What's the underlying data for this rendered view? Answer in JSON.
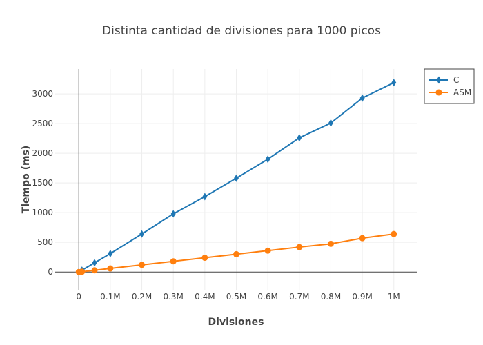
{
  "chart_data": {
    "type": "line",
    "title": "Distinta cantidad de divisiones para 1000 picos",
    "xlabel": "Divisiones",
    "ylabel": "Tiempo (ms)",
    "xlim": [
      -75000,
      1075000
    ],
    "ylim": [
      -300,
      3420
    ],
    "grid": true,
    "legend_position": "top-right",
    "x_ticks": [
      0,
      100000,
      200000,
      300000,
      400000,
      500000,
      600000,
      700000,
      800000,
      900000,
      1000000
    ],
    "x_tick_labels": [
      "0",
      "0.1M",
      "0.2M",
      "0.3M",
      "0.4M",
      "0.5M",
      "0.6M",
      "0.7M",
      "0.8M",
      "0.9M",
      "1M"
    ],
    "y_ticks": [
      0,
      500,
      1000,
      1500,
      2000,
      2500,
      3000
    ],
    "y_tick_labels": [
      "0",
      "500",
      "1000",
      "1500",
      "2000",
      "2500",
      "3000"
    ],
    "x": [
      0,
      10000,
      50000,
      100000,
      200000,
      300000,
      400000,
      500000,
      600000,
      700000,
      800000,
      900000,
      1000000
    ],
    "series": [
      {
        "name": "C",
        "color": "#1f77b4",
        "marker": "diamond",
        "values": [
          0,
          30,
          155,
          310,
          640,
          980,
          1270,
          1580,
          1900,
          2260,
          2510,
          2930,
          3190
        ]
      },
      {
        "name": "ASM",
        "color": "#ff7f0e",
        "marker": "circle",
        "values": [
          0,
          5,
          28,
          60,
          120,
          180,
          240,
          300,
          360,
          420,
          475,
          570,
          640
        ]
      }
    ]
  }
}
